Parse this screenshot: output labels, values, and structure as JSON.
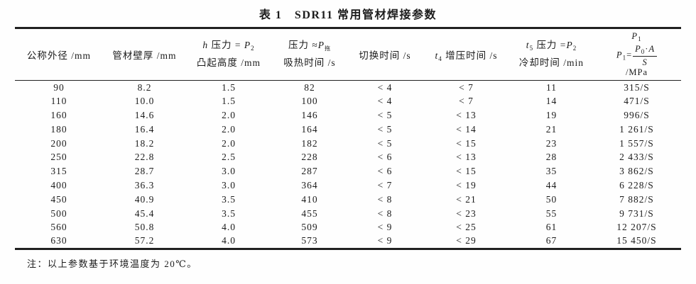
{
  "title": "表 1　SDR11 常用管材焊接参数",
  "note": "注：以上参数基于环境温度为 20℃。",
  "table": {
    "headers": {
      "col1": "公称外径 /mm",
      "col2": "管材壁厚 /mm",
      "col3": {
        "var": "h",
        "rest": " 压力 = ",
        "p": "P",
        "sub": "2",
        "line2": "凸起高度 /mm"
      },
      "col4": {
        "rest": "压力 ≈",
        "p": "P",
        "sub": "拖",
        "line2": "吸热时间 /s"
      },
      "col5": "切换时间 /s",
      "col6": {
        "var": "t",
        "sub": "4",
        "rest": " 增压时间 /s"
      },
      "col7": {
        "var": "t",
        "sub": "5",
        "rest": " 压力 =",
        "p": "P",
        "psub": "2",
        "line2": "冷却时间 /min"
      },
      "col8": {
        "p": "P",
        "p_sub": "1",
        "eq": "=",
        "num_p": "P",
        "num_sub": "0",
        "num_dot": "·",
        "num_a": "A",
        "den": "S",
        "unit": "/MPa"
      }
    },
    "rows": [
      [
        "90",
        "8.2",
        "1.5",
        "82",
        "< 4",
        "< 7",
        "11",
        "315/S"
      ],
      [
        "110",
        "10.0",
        "1.5",
        "100",
        "< 4",
        "< 7",
        "14",
        "471/S"
      ],
      [
        "160",
        "14.6",
        "2.0",
        "146",
        "< 5",
        "< 13",
        "19",
        "996/S"
      ],
      [
        "180",
        "16.4",
        "2.0",
        "164",
        "< 5",
        "< 14",
        "21",
        "1 261/S"
      ],
      [
        "200",
        "18.2",
        "2.0",
        "182",
        "< 5",
        "< 15",
        "23",
        "1 557/S"
      ],
      [
        "250",
        "22.8",
        "2.5",
        "228",
        "< 6",
        "< 13",
        "28",
        "2 433/S"
      ],
      [
        "315",
        "28.7",
        "3.0",
        "287",
        "< 6",
        "< 15",
        "35",
        "3 862/S"
      ],
      [
        "400",
        "36.3",
        "3.0",
        "364",
        "< 7",
        "< 19",
        "44",
        "6 228/S"
      ],
      [
        "450",
        "40.9",
        "3.5",
        "410",
        "< 8",
        "< 21",
        "50",
        "7 882/S"
      ],
      [
        "500",
        "45.4",
        "3.5",
        "455",
        "< 8",
        "< 23",
        "55",
        "9 731/S"
      ],
      [
        "560",
        "50.8",
        "4.0",
        "509",
        "< 9",
        "< 25",
        "61",
        "12 207/S"
      ],
      [
        "630",
        "57.2",
        "4.0",
        "573",
        "< 9",
        "< 29",
        "67",
        "15 450/S"
      ]
    ],
    "colors": {
      "rule": "#202020",
      "text": "#1c1c1c",
      "background": "#fefefe"
    }
  }
}
